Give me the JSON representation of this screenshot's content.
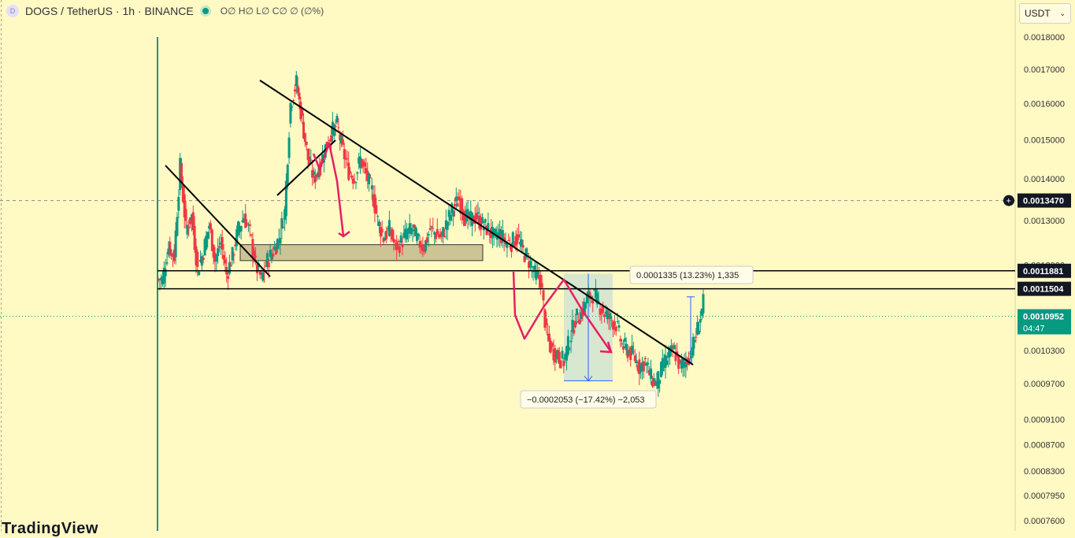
{
  "header": {
    "coin_letter": "D",
    "symbol": "DOGS / TetherUS · 1h · BINANCE",
    "ohlc": "O∅ H∅ L∅ C∅ ∅ (∅%)"
  },
  "currency_select": {
    "label": "USDT"
  },
  "logo": {
    "text": "TradingView"
  },
  "colors": {
    "background": "#fff9c4",
    "up": "#089981",
    "down": "#f23645",
    "drawing": "#e91e63",
    "trendline": "#000000",
    "zone": "#c8bf91",
    "measure": "#2962ff"
  },
  "chart_data": {
    "type": "candlestick",
    "title": "DOGS / TetherUS · 1h · BINANCE",
    "y_scale": "log",
    "ylim": [
      0.00075,
      0.00185
    ],
    "grid": false,
    "price_ticks": [
      "0.0018000",
      "0.0017000",
      "0.0016000",
      "0.0015000",
      "0.0014000",
      "0.0013000",
      "0.0012000",
      "0.0010300",
      "0.0009700",
      "0.0009100",
      "0.0008700",
      "0.0008300",
      "0.0007950",
      "0.0007600"
    ],
    "price_values": [
      0.0018,
      0.0017,
      0.0016,
      0.0015,
      0.0014,
      0.0013,
      0.0012,
      0.00103,
      0.00097,
      0.00091,
      0.00087,
      0.00083,
      0.000795,
      0.00076
    ],
    "crosshair": {
      "price_label": "0.0013470",
      "price": 0.001347
    },
    "horizontal_levels": [
      {
        "label": "0.0011881",
        "price": 0.0011881
      },
      {
        "label": "0.0011504",
        "price": 0.0011504
      }
    ],
    "last_price": {
      "label": "0.0010952",
      "countdown": "04:47",
      "price": 0.0010952
    },
    "annotations": {
      "upper_measure": "0.0001335 (13.23%) 1,335",
      "lower_measure": "−0.0002053 (−17.42%) −2,053"
    },
    "candle_anchors": [
      0.00117,
      0.00124,
      0.00122,
      0.00143,
      0.00128,
      0.00131,
      0.00119,
      0.00123,
      0.00129,
      0.00121,
      0.00125,
      0.00118,
      0.00122,
      0.00128,
      0.00131,
      0.00127,
      0.0012,
      0.00117,
      0.00121,
      0.00123,
      0.00126,
      0.00132,
      0.0016,
      0.00166,
      0.00155,
      0.00145,
      0.0014,
      0.00143,
      0.00148,
      0.00152,
      0.00154,
      0.00147,
      0.00142,
      0.0014,
      0.00145,
      0.00141,
      0.00137,
      0.0013,
      0.00126,
      0.00128,
      0.00124,
      0.00125,
      0.00127,
      0.00128,
      0.00125,
      0.00124,
      0.00128,
      0.00127,
      0.00126,
      0.0013,
      0.00133,
      0.00135,
      0.00131,
      0.0013,
      0.00131,
      0.00129,
      0.00128,
      0.00126,
      0.00127,
      0.00125,
      0.00125,
      0.00126,
      0.00123,
      0.00121,
      0.00118,
      0.00117,
      0.00106,
      0.00103,
      0.00102,
      0.00101,
      0.00105,
      0.00109,
      0.0011,
      0.00113,
      0.00114,
      0.00112,
      0.0011,
      0.00109,
      0.00108,
      0.00104,
      0.00103,
      0.00102,
      0.001,
      0.00101,
      0.00098,
      0.00097,
      0.001,
      0.00102,
      0.00103,
      0.001,
      0.00101,
      0.00103,
      0.00107,
      0.00112
    ]
  }
}
